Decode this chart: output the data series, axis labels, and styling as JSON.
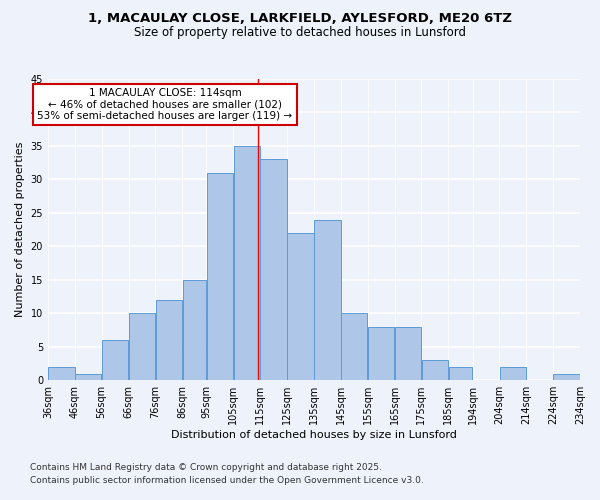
{
  "title_line1": "1, MACAULAY CLOSE, LARKFIELD, AYLESFORD, ME20 6TZ",
  "title_line2": "Size of property relative to detached houses in Lunsford",
  "xlabel": "Distribution of detached houses by size in Lunsford",
  "ylabel": "Number of detached properties",
  "bins": [
    36,
    46,
    56,
    66,
    76,
    86,
    95,
    105,
    115,
    125,
    135,
    145,
    155,
    165,
    175,
    185,
    194,
    204,
    214,
    224,
    234
  ],
  "bin_labels": [
    "36sqm",
    "46sqm",
    "56sqm",
    "66sqm",
    "76sqm",
    "86sqm",
    "95sqm",
    "105sqm",
    "115sqm",
    "125sqm",
    "135sqm",
    "145sqm",
    "155sqm",
    "165sqm",
    "175sqm",
    "185sqm",
    "194sqm",
    "204sqm",
    "214sqm",
    "224sqm",
    "234sqm"
  ],
  "counts": [
    2,
    1,
    6,
    10,
    12,
    15,
    31,
    35,
    33,
    22,
    24,
    10,
    8,
    8,
    3,
    2,
    0,
    2,
    0,
    1
  ],
  "bar_color": "#aec6e8",
  "bar_edge_color": "#5b9bd5",
  "vline_x": 114,
  "annotation_title": "1 MACAULAY CLOSE: 114sqm",
  "annotation_line1": "← 46% of detached houses are smaller (102)",
  "annotation_line2": "53% of semi-detached houses are larger (119) →",
  "annotation_box_color": "#ffffff",
  "annotation_box_edge_color": "#cc0000",
  "annotation_text_color": "#000000",
  "footnote1": "Contains HM Land Registry data © Crown copyright and database right 2025.",
  "footnote2": "Contains public sector information licensed under the Open Government Licence v3.0.",
  "ylim": [
    0,
    45
  ],
  "yticks": [
    0,
    5,
    10,
    15,
    20,
    25,
    30,
    35,
    40,
    45
  ],
  "background_color": "#eef2fa",
  "grid_color": "#ffffff",
  "title_fontsize": 9.5,
  "subtitle_fontsize": 8.5,
  "axis_label_fontsize": 8,
  "tick_fontsize": 7,
  "annotation_fontsize": 7.5,
  "footnote_fontsize": 6.5
}
